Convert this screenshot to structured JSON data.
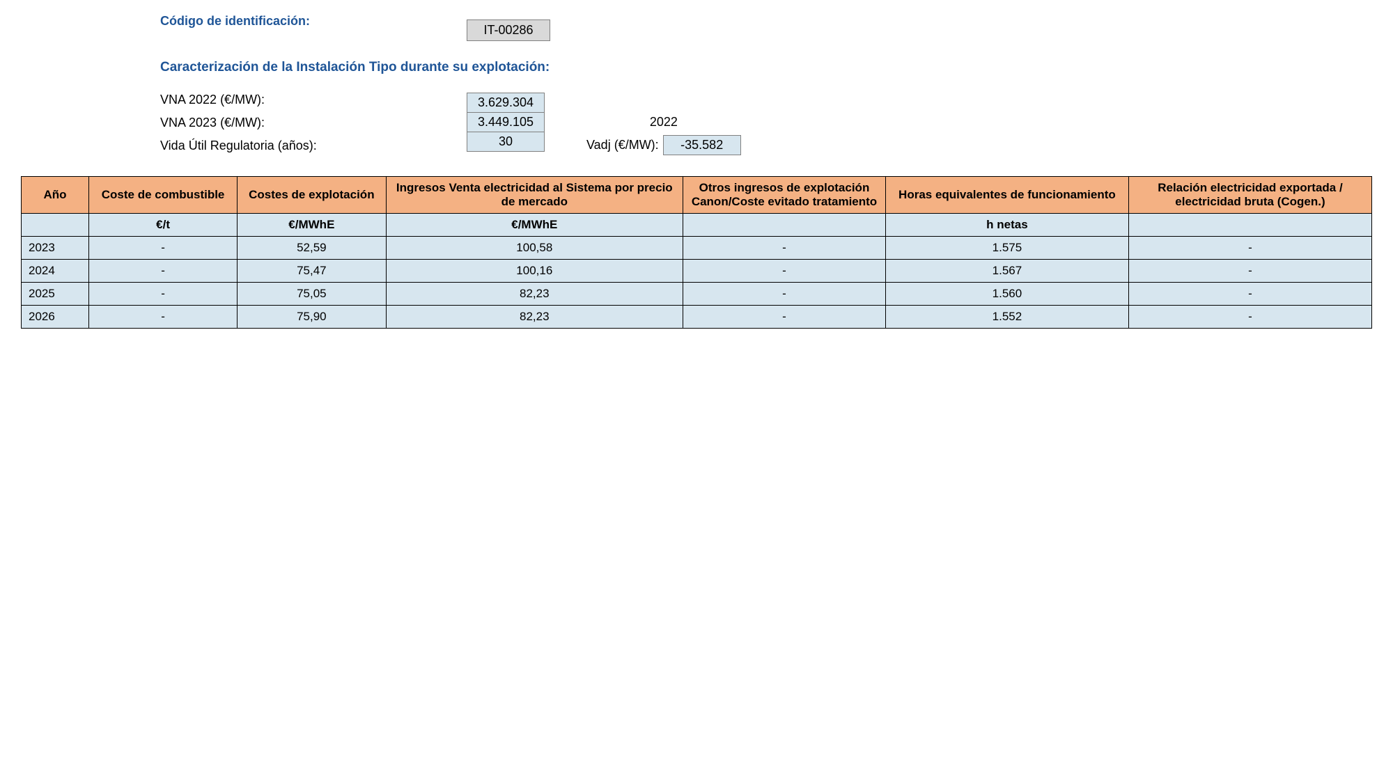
{
  "header": {
    "code_label": "Código de identificación:",
    "code_value": "IT-00286",
    "subtitle": "Caracterización de la Instalación Tipo durante su explotación:",
    "vna2022_label": "VNA 2022 (€/MW):",
    "vna2022_value": "3.629.304",
    "vna2023_label": "VNA 2023 (€/MW):",
    "vna2023_value": "3.449.105",
    "year_ref": "2022",
    "life_label": "Vida Útil Regulatoria (años):",
    "life_value": "30",
    "vadj_label": "Vadj (€/MW):",
    "vadj_value": "-35.582"
  },
  "table": {
    "columns": [
      "Año",
      "Coste de combustible",
      "Costes de explotación",
      "Ingresos Venta electricidad al Sistema por precio de mercado",
      "Otros ingresos de explotación Canon/Coste evitado tratamiento",
      "Horas equivalentes de funcionamiento",
      "Relación electricidad exportada / electricidad bruta (Cogen.)"
    ],
    "units": [
      "",
      "€/t",
      "€/MWhE",
      "€/MWhE",
      "",
      "h netas",
      ""
    ],
    "rows": [
      [
        "2023",
        "-",
        "52,59",
        "100,58",
        "-",
        "1.575",
        "-"
      ],
      [
        "2024",
        "-",
        "75,47",
        "100,16",
        "-",
        "1.567",
        "-"
      ],
      [
        "2025",
        "-",
        "75,05",
        "82,23",
        "-",
        "1.560",
        "-"
      ],
      [
        "2026",
        "-",
        "75,90",
        "82,23",
        "-",
        "1.552",
        "-"
      ]
    ]
  },
  "style": {
    "header_bg": "#f4b183",
    "cell_bg": "#d7e6ef",
    "code_bg": "#d9d9d9",
    "blue_heading": "#1f5597",
    "border": "#000000"
  }
}
